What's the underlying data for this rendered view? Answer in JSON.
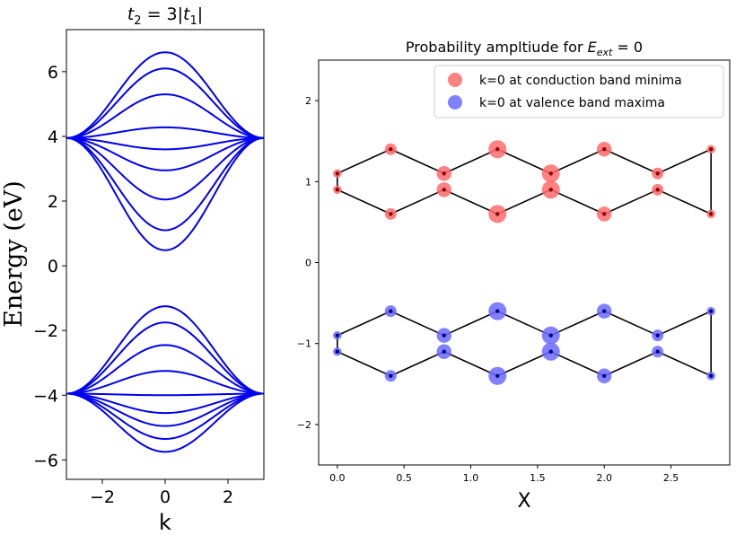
{
  "chart_data": [
    {
      "type": "line",
      "title_prefix": "t",
      "title_sub1": "2",
      "title_mid": " = 3|",
      "title_var": "t",
      "title_sub2": "1",
      "title_end": "|",
      "xlabel": "k",
      "ylabel": "Energy (eV)",
      "xlim": [
        -3.1416,
        3.1416
      ],
      "ylim": [
        -6.6,
        7.3
      ],
      "xticks": [
        -2,
        0,
        2
      ],
      "xtick_labels": [
        "−2",
        "0",
        "2"
      ],
      "yticks": [
        -6,
        -4,
        -2,
        0,
        2,
        4,
        6
      ],
      "ytick_labels": [
        "−6",
        "−4",
        "−2",
        "0",
        "2",
        "4",
        "6"
      ],
      "line_color": "#0000ee",
      "band_edges": {
        "upper_left": 3.95,
        "lower_left": -3.95
      },
      "conduction_band_centers": [
        6.6,
        6.1,
        5.3,
        4.28,
        3.6,
        2.95,
        2.05,
        1.1,
        0.48
      ],
      "valence_band_centers": [
        -1.25,
        -1.75,
        -2.45,
        -3.25,
        -4.0,
        -4.55,
        -4.95,
        -5.35,
        -5.75
      ],
      "grid": false
    },
    {
      "type": "scatter",
      "title_text": "Probability ampltiude for ",
      "title_var": "E",
      "title_sub": "ext",
      "title_end": " = 0",
      "xlabel": "X",
      "ylabel": "",
      "xlim": [
        -0.14,
        2.94
      ],
      "ylim": [
        -2.5,
        2.5
      ],
      "xticks": [
        0.0,
        0.5,
        1.0,
        1.5,
        2.0,
        2.5
      ],
      "xtick_labels": [
        "0.0",
        "0.5",
        "1.0",
        "1.5",
        "2.0",
        "2.5"
      ],
      "yticks": [
        -2,
        -1,
        0,
        1,
        2
      ],
      "ytick_labels": [
        "−2",
        "−1",
        "0",
        "1",
        "2"
      ],
      "legend_position": "top-right",
      "grid": false,
      "series": [
        {
          "name": "k=0 at conduction band minima",
          "color": "#ff6b6b",
          "points": [
            {
              "x": 0.0,
              "y": 1.1,
              "a": 0.25
            },
            {
              "x": 0.0,
              "y": 0.9,
              "a": 0.25
            },
            {
              "x": 0.4,
              "y": 1.4,
              "a": 0.5
            },
            {
              "x": 0.4,
              "y": 0.6,
              "a": 0.5
            },
            {
              "x": 0.8,
              "y": 1.1,
              "a": 0.75
            },
            {
              "x": 0.8,
              "y": 0.9,
              "a": 0.75
            },
            {
              "x": 1.2,
              "y": 1.4,
              "a": 1.0
            },
            {
              "x": 1.2,
              "y": 0.6,
              "a": 1.0
            },
            {
              "x": 1.6,
              "y": 1.1,
              "a": 1.0
            },
            {
              "x": 1.6,
              "y": 0.9,
              "a": 1.0
            },
            {
              "x": 2.0,
              "y": 1.4,
              "a": 0.75
            },
            {
              "x": 2.0,
              "y": 0.6,
              "a": 0.75
            },
            {
              "x": 2.4,
              "y": 1.1,
              "a": 0.5
            },
            {
              "x": 2.4,
              "y": 0.9,
              "a": 0.5
            },
            {
              "x": 2.8,
              "y": 1.4,
              "a": 0.25
            },
            {
              "x": 2.8,
              "y": 0.6,
              "a": 0.25
            }
          ]
        },
        {
          "name": "k=0 at valence band maxima",
          "color": "#6b6bff",
          "points": [
            {
              "x": 0.0,
              "y": -0.9,
              "a": 0.25
            },
            {
              "x": 0.0,
              "y": -1.1,
              "a": 0.25
            },
            {
              "x": 0.4,
              "y": -0.6,
              "a": 0.5
            },
            {
              "x": 0.4,
              "y": -1.4,
              "a": 0.5
            },
            {
              "x": 0.8,
              "y": -0.9,
              "a": 0.75
            },
            {
              "x": 0.8,
              "y": -1.1,
              "a": 0.75
            },
            {
              "x": 1.2,
              "y": -0.6,
              "a": 1.0
            },
            {
              "x": 1.2,
              "y": -1.4,
              "a": 1.0
            },
            {
              "x": 1.6,
              "y": -0.9,
              "a": 1.0
            },
            {
              "x": 1.6,
              "y": -1.1,
              "a": 1.0
            },
            {
              "x": 2.0,
              "y": -0.6,
              "a": 0.75
            },
            {
              "x": 2.0,
              "y": -1.4,
              "a": 0.75
            },
            {
              "x": 2.4,
              "y": -0.9,
              "a": 0.5
            },
            {
              "x": 2.4,
              "y": -1.1,
              "a": 0.5
            },
            {
              "x": 2.8,
              "y": -0.6,
              "a": 0.25
            },
            {
              "x": 2.8,
              "y": -1.4,
              "a": 0.25
            }
          ]
        }
      ],
      "lattice_paths": [
        [
          [
            0.0,
            1.1
          ],
          [
            0.4,
            1.4
          ],
          [
            0.8,
            1.1
          ],
          [
            1.2,
            1.4
          ],
          [
            1.6,
            1.1
          ],
          [
            2.0,
            1.4
          ],
          [
            2.4,
            1.1
          ],
          [
            2.8,
            1.4
          ],
          [
            2.8,
            0.6
          ],
          [
            2.4,
            0.9
          ],
          [
            2.0,
            0.6
          ],
          [
            1.6,
            0.9
          ],
          [
            1.2,
            0.6
          ],
          [
            0.8,
            0.9
          ],
          [
            0.4,
            0.6
          ],
          [
            0.0,
            0.9
          ],
          [
            0.0,
            1.1
          ]
        ],
        [
          [
            0.0,
            -0.9
          ],
          [
            0.4,
            -0.6
          ],
          [
            0.8,
            -0.9
          ],
          [
            1.2,
            -0.6
          ],
          [
            1.6,
            -0.9
          ],
          [
            2.0,
            -0.6
          ],
          [
            2.4,
            -0.9
          ],
          [
            2.8,
            -0.6
          ],
          [
            2.8,
            -1.4
          ],
          [
            2.4,
            -1.1
          ],
          [
            2.0,
            -1.4
          ],
          [
            1.6,
            -1.1
          ],
          [
            1.2,
            -1.4
          ],
          [
            0.8,
            -1.1
          ],
          [
            0.4,
            -1.4
          ],
          [
            0.0,
            -1.1
          ],
          [
            0.0,
            -0.9
          ]
        ]
      ]
    }
  ]
}
